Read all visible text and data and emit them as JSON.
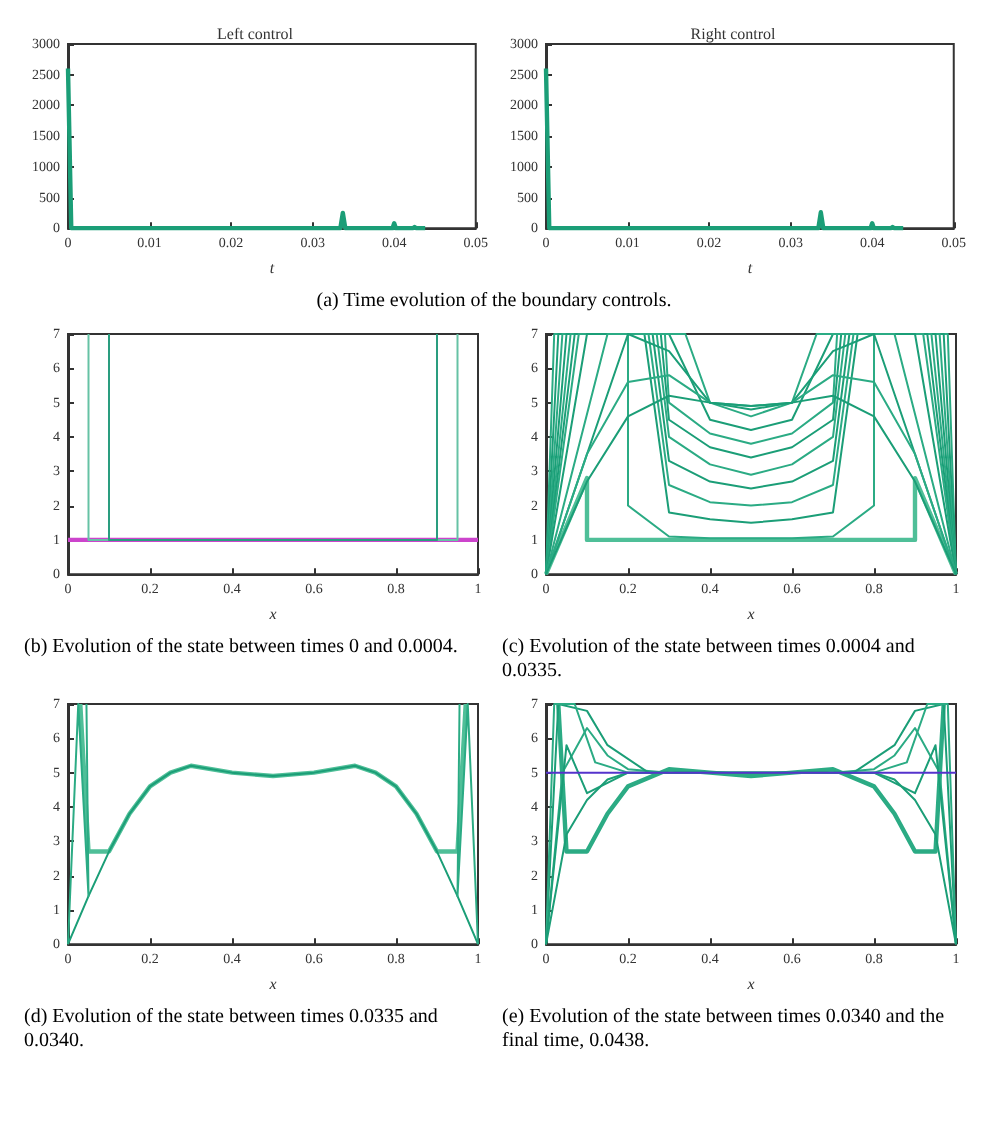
{
  "chart_data": [
    {
      "type": "line",
      "title": "Left control",
      "xlabel": "t",
      "xlim": [
        0,
        0.05
      ],
      "xticks": [
        0,
        0.01,
        0.02,
        0.03,
        0.04,
        0.05
      ],
      "ylim": [
        0,
        3000
      ],
      "yticks": [
        0,
        500,
        1000,
        1500,
        2000,
        2500,
        3000
      ],
      "annotations": [
        "(a) Time evolution of the boundary controls."
      ],
      "series": [
        {
          "color": "#1b9e77",
          "x": [
            0,
            0.0004,
            0.0334,
            0.0337,
            0.034,
            0.0398,
            0.04,
            0.0402,
            0.0423,
            0.0425,
            0.0427,
            0.0438
          ],
          "values": [
            2600,
            0,
            0,
            250,
            0,
            0,
            80,
            0,
            0,
            20,
            0,
            0
          ]
        }
      ]
    },
    {
      "type": "line",
      "title": "Right control",
      "xlabel": "t",
      "xlim": [
        0,
        0.05
      ],
      "xticks": [
        0,
        0.01,
        0.02,
        0.03,
        0.04,
        0.05
      ],
      "ylim": [
        0,
        3000
      ],
      "yticks": [
        0,
        500,
        1000,
        1500,
        2000,
        2500,
        3000
      ],
      "series": [
        {
          "color": "#1b9e77",
          "x": [
            0,
            0.0004,
            0.0334,
            0.0337,
            0.034,
            0.0398,
            0.04,
            0.0402,
            0.0423,
            0.0425,
            0.0427,
            0.0438
          ],
          "values": [
            2600,
            0,
            0,
            260,
            0,
            0,
            80,
            0,
            0,
            20,
            0,
            0
          ]
        }
      ]
    },
    {
      "type": "line",
      "xlabel": "x",
      "xlim": [
        0,
        1
      ],
      "xticks": [
        0,
        0.2,
        0.4,
        0.6,
        0.8,
        1
      ],
      "ylim": [
        0,
        7
      ],
      "yticks": [
        0,
        1,
        2,
        3,
        4,
        5,
        6,
        7
      ],
      "annotations": [
        "(b) Evolution of the state between times 0 and 0.0004."
      ],
      "series": [
        {
          "color": "#cc44cc",
          "x": [
            0,
            1
          ],
          "values": [
            1,
            1
          ]
        },
        {
          "color": "#66c2a5",
          "x": [
            0.05,
            0.05,
            0.95,
            0.95
          ],
          "values": [
            7,
            1,
            1,
            7
          ]
        },
        {
          "color": "#2a9d7f",
          "x": [
            0.1,
            0.1,
            0.9,
            0.9
          ],
          "values": [
            7,
            1,
            1,
            7
          ]
        }
      ]
    },
    {
      "type": "line",
      "xlabel": "x",
      "xlim": [
        0,
        1
      ],
      "xticks": [
        0,
        0.2,
        0.4,
        0.6,
        0.8,
        1
      ],
      "ylim": [
        0,
        7
      ],
      "yticks": [
        0,
        1,
        2,
        3,
        4,
        5,
        6,
        7
      ],
      "annotations": [
        "(c) Evolution of the state between times 0.0004 and 0.0335."
      ],
      "series": [
        {
          "color": "#4fbf98",
          "x": [
            0,
            0.1,
            0.1,
            0.9,
            0.9,
            1
          ],
          "values": [
            0,
            2.8,
            1,
            1,
            2.8,
            0
          ]
        },
        {
          "color": "#2bab84",
          "x": [
            0,
            0.02,
            0.2,
            0.2,
            0.3,
            0.4,
            0.5,
            0.6,
            0.7,
            0.8,
            0.8,
            0.98,
            1
          ],
          "values": [
            0,
            7,
            7,
            2,
            1.1,
            1.05,
            1.05,
            1.05,
            1.1,
            2,
            7,
            7,
            0
          ]
        },
        {
          "color": "#1b9e77",
          "x": [
            0,
            0.03,
            0.24,
            0.3,
            0.4,
            0.5,
            0.6,
            0.7,
            0.76,
            0.97,
            1
          ],
          "values": [
            0,
            7,
            7,
            1.8,
            1.6,
            1.5,
            1.6,
            1.8,
            7,
            7,
            0
          ]
        },
        {
          "color": "#2bab84",
          "x": [
            0,
            0.04,
            0.25,
            0.3,
            0.4,
            0.5,
            0.6,
            0.7,
            0.75,
            0.96,
            1
          ],
          "values": [
            0,
            7,
            7,
            2.6,
            2.1,
            2,
            2.1,
            2.6,
            7,
            7,
            0
          ]
        },
        {
          "color": "#1b9e77",
          "x": [
            0,
            0.05,
            0.26,
            0.3,
            0.4,
            0.5,
            0.6,
            0.7,
            0.74,
            0.95,
            1
          ],
          "values": [
            0,
            7,
            7,
            3.3,
            2.7,
            2.5,
            2.7,
            3.3,
            7,
            7,
            0
          ]
        },
        {
          "color": "#2bab84",
          "x": [
            0,
            0.06,
            0.27,
            0.3,
            0.4,
            0.5,
            0.6,
            0.7,
            0.73,
            0.94,
            1
          ],
          "values": [
            0,
            7,
            7,
            4,
            3.2,
            2.9,
            3.2,
            4,
            7,
            7,
            0
          ]
        },
        {
          "color": "#1b9e77",
          "x": [
            0,
            0.07,
            0.28,
            0.3,
            0.4,
            0.5,
            0.6,
            0.7,
            0.72,
            0.93,
            1
          ],
          "values": [
            0,
            7,
            7,
            4.5,
            3.7,
            3.4,
            3.7,
            4.5,
            7,
            7,
            0
          ]
        },
        {
          "color": "#2bab84",
          "x": [
            0,
            0.08,
            0.29,
            0.3,
            0.4,
            0.5,
            0.6,
            0.7,
            0.71,
            0.92,
            1
          ],
          "values": [
            0,
            7,
            7,
            5,
            4.1,
            3.8,
            4.1,
            5,
            7,
            7,
            0
          ]
        },
        {
          "color": "#1b9e77",
          "x": [
            0,
            0.1,
            0.3,
            0.4,
            0.5,
            0.6,
            0.7,
            0.9,
            1
          ],
          "values": [
            0,
            7,
            7,
            4.5,
            4.2,
            4.5,
            7,
            7,
            0
          ]
        },
        {
          "color": "#2bab84",
          "x": [
            0,
            0.15,
            0.34,
            0.4,
            0.5,
            0.6,
            0.66,
            0.85,
            1
          ],
          "values": [
            0,
            7,
            7,
            5,
            4.6,
            5,
            7,
            7,
            0
          ]
        },
        {
          "color": "#1b9e77",
          "x": [
            0,
            0.2,
            0.3,
            0.4,
            0.5,
            0.6,
            0.7,
            0.8,
            1
          ],
          "values": [
            0,
            7,
            6.5,
            5,
            4.8,
            5,
            6.5,
            7,
            0
          ]
        },
        {
          "color": "#2bab84",
          "x": [
            0,
            0.1,
            0.2,
            0.3,
            0.4,
            0.5,
            0.6,
            0.7,
            0.8,
            0.9,
            1
          ],
          "values": [
            0,
            3.5,
            5.6,
            5.8,
            5,
            4.9,
            5,
            5.8,
            5.6,
            3.5,
            0
          ]
        },
        {
          "color": "#1b9e77",
          "x": [
            0,
            0.1,
            0.2,
            0.3,
            0.4,
            0.5,
            0.6,
            0.7,
            0.8,
            0.9,
            1
          ],
          "values": [
            0,
            2.7,
            4.6,
            5.2,
            5,
            4.9,
            5,
            5.2,
            4.6,
            2.7,
            0
          ]
        }
      ]
    },
    {
      "type": "line",
      "xlabel": "x",
      "xlim": [
        0,
        1
      ],
      "xticks": [
        0,
        0.2,
        0.4,
        0.6,
        0.8,
        1
      ],
      "ylim": [
        0,
        7
      ],
      "yticks": [
        0,
        1,
        2,
        3,
        4,
        5,
        6,
        7
      ],
      "annotations": [
        "(d) Evolution of the state between times 0.0335 and 0.0340."
      ],
      "series": [
        {
          "color": "#4fbf98",
          "x": [
            0.03,
            0.05,
            0.1,
            0.15,
            0.2,
            0.25,
            0.3,
            0.4,
            0.5,
            0.6,
            0.7,
            0.75,
            0.8,
            0.85,
            0.9,
            0.95,
            0.97
          ],
          "values": [
            7,
            2.7,
            2.7,
            3.8,
            4.6,
            5,
            5.2,
            5,
            4.9,
            5,
            5.2,
            5,
            4.6,
            3.8,
            2.7,
            2.7,
            7
          ]
        },
        {
          "color": "#1b9e77",
          "x": [
            0,
            0.05,
            0.1,
            0.15,
            0.2,
            0.25,
            0.3,
            0.4,
            0.5,
            0.6,
            0.7,
            0.75,
            0.8,
            0.85,
            0.9,
            0.95,
            1
          ],
          "values": [
            0,
            1.4,
            2.7,
            3.8,
            4.6,
            5,
            5.2,
            5,
            4.9,
            5,
            5.2,
            5,
            4.6,
            3.8,
            2.7,
            1.4,
            0
          ]
        },
        {
          "color": "#2bab84",
          "x": [
            0,
            0.025,
            0.05,
            0.045
          ],
          "values": [
            0,
            7,
            1.4,
            7
          ]
        },
        {
          "color": "#2bab84",
          "x": [
            1,
            0.975,
            0.95,
            0.955
          ],
          "values": [
            0,
            7,
            1.4,
            7
          ]
        }
      ]
    },
    {
      "type": "line",
      "xlabel": "x",
      "xlim": [
        0,
        1
      ],
      "xticks": [
        0,
        0.2,
        0.4,
        0.6,
        0.8,
        1
      ],
      "ylim": [
        0,
        7
      ],
      "yticks": [
        0,
        1,
        2,
        3,
        4,
        5,
        6,
        7
      ],
      "annotations": [
        "(e) Evolution of the state between times 0.0340 and the final time, 0.0438."
      ],
      "series": [
        {
          "color": "#2bab84",
          "x": [
            0.03,
            0.05,
            0.1,
            0.15,
            0.2,
            0.3,
            0.4,
            0.5,
            0.6,
            0.7,
            0.8,
            0.85,
            0.9,
            0.95,
            0.97
          ],
          "values": [
            7,
            2.7,
            2.7,
            3.8,
            4.6,
            5.1,
            5,
            4.9,
            5,
            5.1,
            4.6,
            3.8,
            2.7,
            2.7,
            7
          ]
        },
        {
          "color": "#1b9e77",
          "x": [
            0,
            0.05,
            0.1,
            0.15,
            0.2,
            0.3,
            0.5,
            0.7,
            0.8,
            0.85,
            0.9,
            0.95,
            1
          ],
          "values": [
            0,
            3.2,
            4.2,
            4.8,
            5,
            5,
            5,
            5,
            5,
            4.8,
            4.2,
            3.2,
            0
          ]
        },
        {
          "color": "#2bab84",
          "x": [
            0,
            0.04,
            0.1,
            0.15,
            0.2,
            0.3,
            0.5,
            0.7,
            0.8,
            0.85,
            0.9,
            0.96,
            1
          ],
          "values": [
            0,
            5,
            6.3,
            5.5,
            5.1,
            5,
            5,
            5,
            5.1,
            5.5,
            6.3,
            5,
            0
          ]
        },
        {
          "color": "#1b9e77",
          "x": [
            0,
            0.03,
            0.1,
            0.15,
            0.25,
            0.5,
            0.75,
            0.85,
            0.9,
            0.97,
            1
          ],
          "values": [
            0,
            7,
            6.8,
            5.8,
            5,
            5,
            5,
            5.8,
            6.8,
            7,
            0
          ]
        },
        {
          "color": "#2bab84",
          "x": [
            0,
            0.02,
            0.07,
            0.12,
            0.2,
            0.5,
            0.8,
            0.88,
            0.93,
            0.98,
            1
          ],
          "values": [
            0,
            7,
            7,
            5.3,
            5,
            5,
            5,
            5.3,
            7,
            7,
            0
          ]
        },
        {
          "color": "#1b9e77",
          "x": [
            0,
            0.05,
            0.1,
            0.2,
            0.5,
            0.8,
            0.9,
            0.95,
            1
          ],
          "values": [
            0,
            5.8,
            4.4,
            5,
            5,
            5,
            4.4,
            5.8,
            0
          ]
        },
        {
          "color": "#5533cc",
          "x": [
            0,
            1
          ],
          "values": [
            5,
            5
          ]
        }
      ]
    }
  ]
}
